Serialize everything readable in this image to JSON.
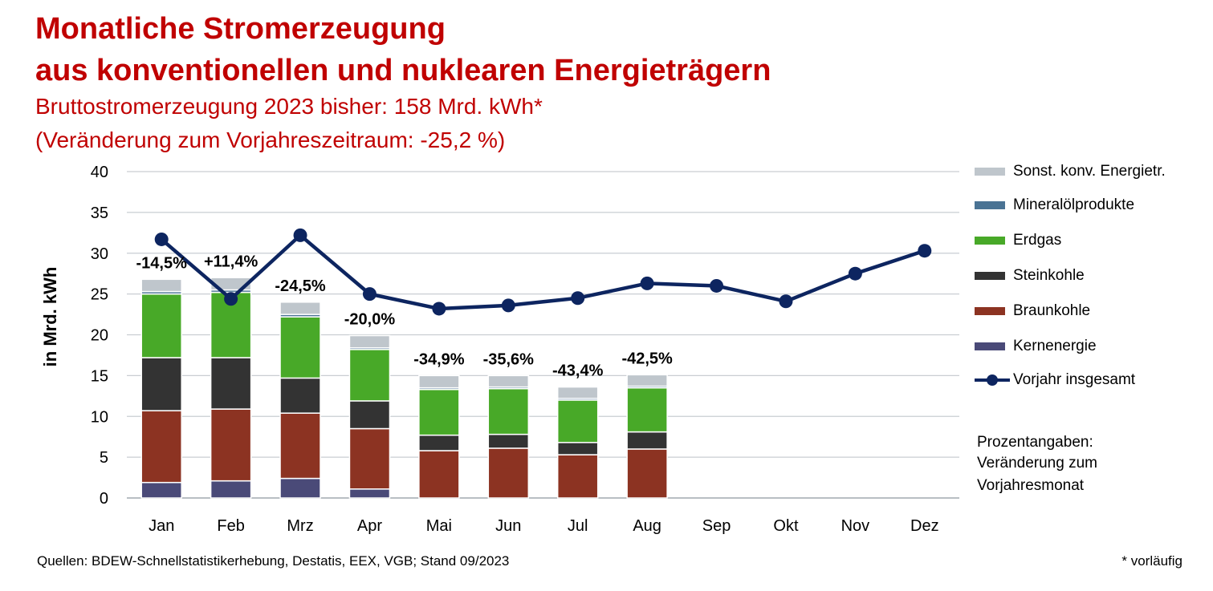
{
  "header": {
    "title_line1": "Monatliche Stromerzeugung",
    "title_line2": "aus konventionellen und nuklearen Energieträgern",
    "subtitle_line1": "Bruttostromerzeugung 2023 bisher: 158 Mrd. kWh*",
    "subtitle_line2": "(Veränderung zum Vorjahreszeitraum: -25,2 %)"
  },
  "legend": {
    "items": [
      {
        "label": "Sonst. konv. Energietr.",
        "color": "#bfc6cc"
      },
      {
        "label": "Mineralölprodukte",
        "color": "#4a7394"
      },
      {
        "label": "Erdgas",
        "color": "#48a928"
      },
      {
        "label": "Steinkohle",
        "color": "#333333"
      },
      {
        "label": "Braunkohle",
        "color": "#8c3322"
      },
      {
        "label": "Kernenergie",
        "color": "#4a4a78"
      }
    ],
    "line_label": "Vorjahr insgesamt",
    "line_color": "#0d2560"
  },
  "note": {
    "line1": "Prozentangaben:",
    "line2": "Veränderung zum",
    "line3": "Vorjahresmonat"
  },
  "footer": {
    "source": "Quellen: BDEW-Schnellstatistikerhebung, Destatis, EEX, VGB; Stand 09/2023",
    "preliminary": "* vorläufig"
  },
  "chart_data": {
    "type": "bar",
    "stacked": true,
    "ylabel": "in Mrd. kWh",
    "ylim": [
      0,
      40
    ],
    "yticks": [
      0,
      5,
      10,
      15,
      20,
      25,
      30,
      35,
      40
    ],
    "grid": true,
    "legend_position": "right",
    "categories": [
      "Jan",
      "Feb",
      "Mrz",
      "Apr",
      "Mai",
      "Jun",
      "Jul",
      "Aug",
      "Sep",
      "Okt",
      "Nov",
      "Dez"
    ],
    "series": [
      {
        "name": "Kernenergie",
        "color": "#4a4a78",
        "values": [
          1.9,
          2.1,
          2.4,
          1.1,
          null,
          null,
          null,
          null,
          null,
          null,
          null,
          null
        ]
      },
      {
        "name": "Braunkohle",
        "color": "#8c3322",
        "values": [
          8.8,
          8.8,
          8.0,
          7.4,
          5.8,
          6.1,
          5.3,
          6.0,
          null,
          null,
          null,
          null
        ]
      },
      {
        "name": "Steinkohle",
        "color": "#333333",
        "values": [
          6.5,
          6.3,
          4.3,
          3.4,
          1.9,
          1.7,
          1.5,
          2.1,
          null,
          null,
          null,
          null
        ]
      },
      {
        "name": "Erdgas",
        "color": "#48a928",
        "values": [
          7.8,
          8.0,
          7.5,
          6.3,
          5.6,
          5.6,
          5.2,
          5.4,
          null,
          null,
          null,
          null
        ]
      },
      {
        "name": "Mineralölprodukte",
        "color": "#4a7394",
        "values": [
          0.3,
          0.3,
          0.3,
          0.2,
          0.2,
          0.2,
          0.2,
          0.2,
          null,
          null,
          null,
          null
        ]
      },
      {
        "name": "Sonst. konv. Energietr.",
        "color": "#bfc6cc",
        "values": [
          1.5,
          1.5,
          1.5,
          1.5,
          1.5,
          1.4,
          1.4,
          1.4,
          null,
          null,
          null,
          null
        ]
      }
    ],
    "line_series": {
      "name": "Vorjahr insgesamt",
      "color": "#0d2560",
      "values": [
        31.7,
        24.4,
        32.2,
        25.0,
        23.2,
        23.6,
        24.5,
        26.3,
        26.0,
        24.1,
        27.5,
        30.3
      ]
    },
    "annotations": [
      "-14,5%",
      "+11,4%",
      "-24,5%",
      "-20,0%",
      "-34,9%",
      "-35,6%",
      "-43,4%",
      "-42,5%"
    ]
  }
}
